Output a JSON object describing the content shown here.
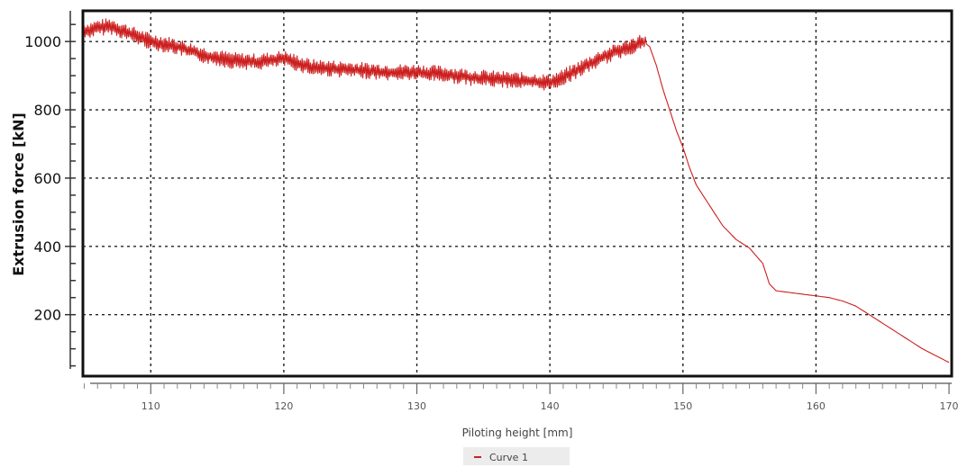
{
  "chart_data": {
    "type": "line",
    "xlabel": "Piloting height [mm]",
    "ylabel": "Extrusion force [kN]",
    "xlim": [
      104.9,
      170.2
    ],
    "ylim": [
      20,
      1090
    ],
    "x_ticks": [
      110,
      120,
      130,
      140,
      150,
      160,
      170
    ],
    "y_ticks": [
      200,
      400,
      600,
      800,
      1000
    ],
    "grid": true,
    "legend": "bottom-center",
    "colors": {
      "series": "#cc1f1f",
      "grid": "#222222",
      "frame": "#111111"
    },
    "series": [
      {
        "name": "Curve 1",
        "x": [
          105,
          106,
          107,
          108,
          109,
          110,
          112,
          114,
          116,
          118,
          120,
          122,
          124,
          126,
          128,
          130,
          132,
          134,
          136,
          138,
          140,
          141,
          142,
          143,
          144,
          145,
          146,
          147,
          147.5,
          148,
          148.5,
          149,
          149.5,
          150,
          150.5,
          151,
          152,
          153,
          154,
          155,
          156,
          156.5,
          157,
          158,
          159,
          160,
          161,
          162,
          163,
          164,
          165,
          166,
          167,
          168,
          169,
          170
        ],
        "y": [
          1030,
          1040,
          1045,
          1030,
          1015,
          1000,
          985,
          960,
          945,
          940,
          950,
          925,
          920,
          915,
          910,
          910,
          905,
          895,
          890,
          885,
          880,
          895,
          915,
          935,
          955,
          970,
          985,
          1000,
          985,
          930,
          860,
          800,
          740,
          690,
          630,
          580,
          520,
          460,
          420,
          395,
          350,
          290,
          270,
          265,
          260,
          255,
          250,
          240,
          225,
          200,
          175,
          150,
          125,
          100,
          80,
          60
        ]
      }
    ]
  }
}
